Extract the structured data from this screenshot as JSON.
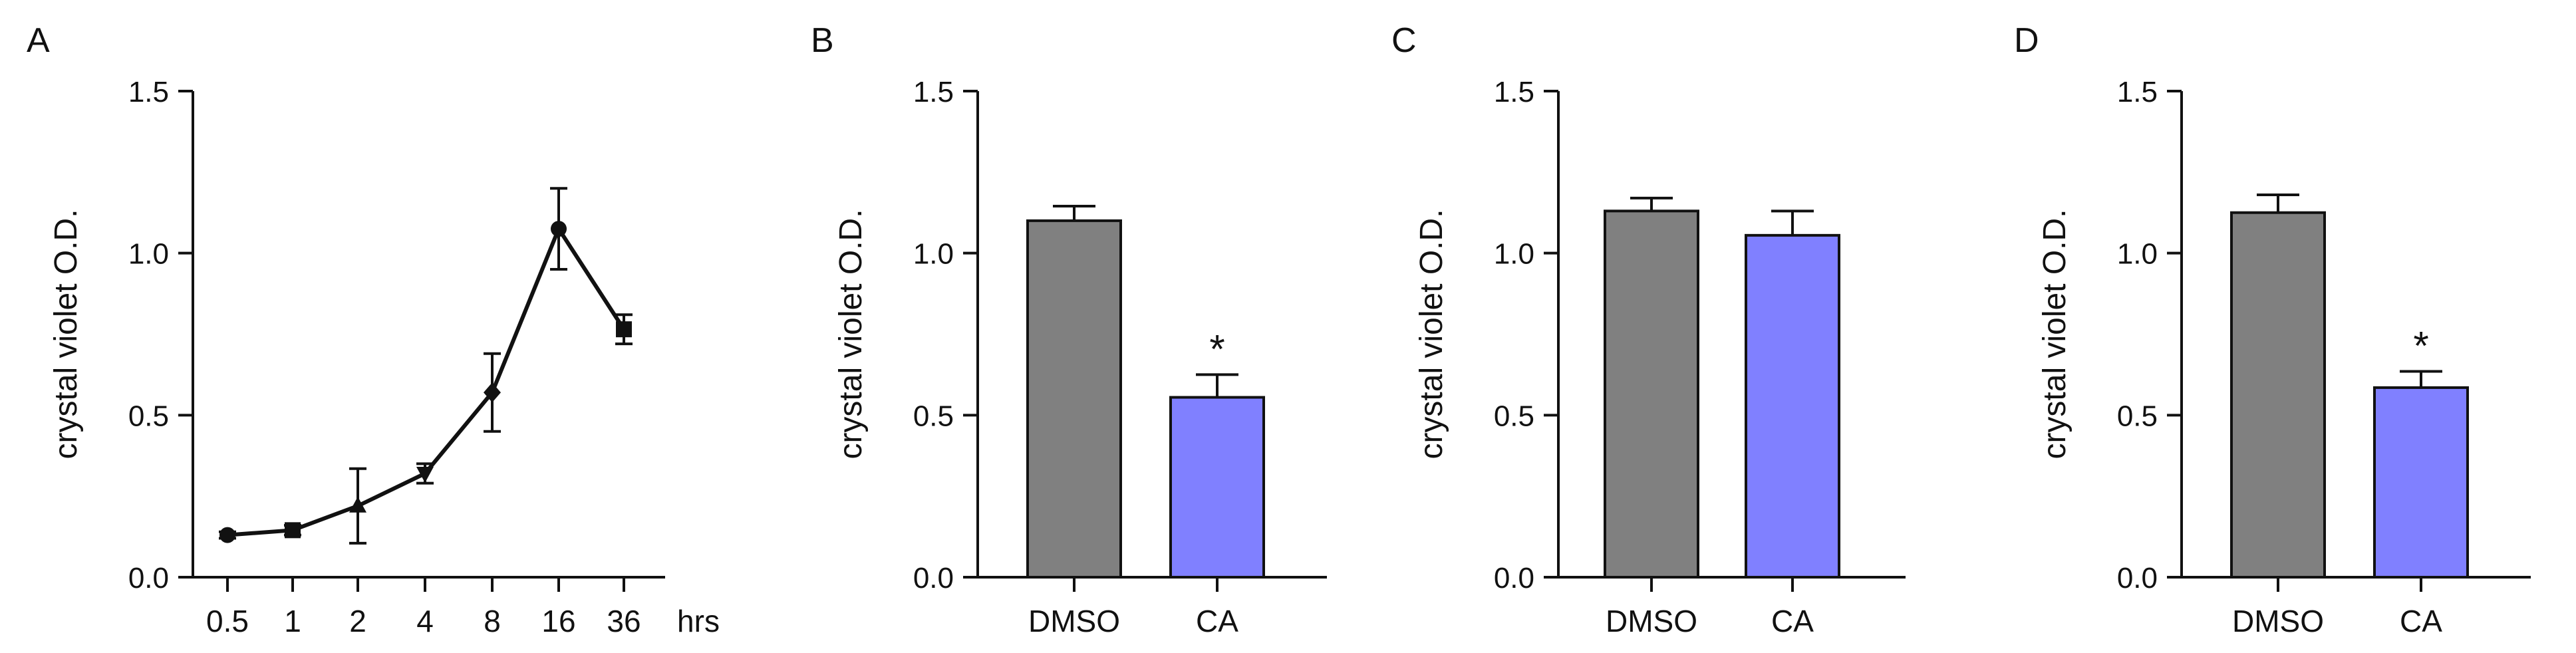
{
  "chart_data": [
    {
      "panel": "A",
      "type": "line",
      "title": "",
      "xlabel": "hrs",
      "ylabel": "crystal violet O.D.",
      "ylim": [
        0,
        1.5
      ],
      "yticks": [
        "0.0",
        "0.5",
        "1.0",
        "1.5"
      ],
      "categories": [
        "0.5",
        "1",
        "2",
        "4",
        "8",
        "16",
        "36"
      ],
      "series": [
        {
          "name": "crystal violet O.D.",
          "values": [
            0.13,
            0.145,
            0.22,
            0.32,
            0.57,
            1.075,
            0.765
          ],
          "errors": [
            0.01,
            0.015,
            0.115,
            0.03,
            0.12,
            0.125,
            0.045
          ],
          "markers": [
            "circle",
            "square",
            "triangle-up",
            "triangle-down",
            "diamond",
            "circle",
            "square"
          ],
          "color": "#111111"
        }
      ]
    },
    {
      "panel": "B",
      "type": "bar",
      "title": "",
      "xlabel": "",
      "ylabel": "crystal violet O.D.",
      "ylim": [
        0,
        1.5
      ],
      "yticks": [
        "0.0",
        "0.5",
        "1.0",
        "1.5"
      ],
      "categories": [
        "DMSO",
        "CA"
      ],
      "values": [
        1.1,
        0.555
      ],
      "errors": [
        0.045,
        0.07
      ],
      "colors": [
        "#808080",
        "#8080ff"
      ],
      "significance": [
        "",
        "*"
      ]
    },
    {
      "panel": "C",
      "type": "bar",
      "title": "",
      "xlabel": "",
      "ylabel": "crystal violet O.D.",
      "ylim": [
        0,
        1.5
      ],
      "yticks": [
        "0.0",
        "0.5",
        "1.0",
        "1.5"
      ],
      "categories": [
        "DMSO",
        "CA"
      ],
      "values": [
        1.13,
        1.055
      ],
      "errors": [
        0.04,
        0.075
      ],
      "colors": [
        "#808080",
        "#8080ff"
      ],
      "significance": [
        "",
        ""
      ]
    },
    {
      "panel": "D",
      "type": "bar",
      "title": "",
      "xlabel": "",
      "ylabel": "crystal violet O.D.",
      "ylim": [
        0,
        1.5
      ],
      "yticks": [
        "0.0",
        "0.5",
        "1.0",
        "1.5"
      ],
      "categories": [
        "DMSO",
        "CA"
      ],
      "values": [
        1.125,
        0.585
      ],
      "errors": [
        0.055,
        0.05
      ],
      "colors": [
        "#808080",
        "#8080ff"
      ],
      "significance": [
        "",
        "*"
      ]
    }
  ]
}
